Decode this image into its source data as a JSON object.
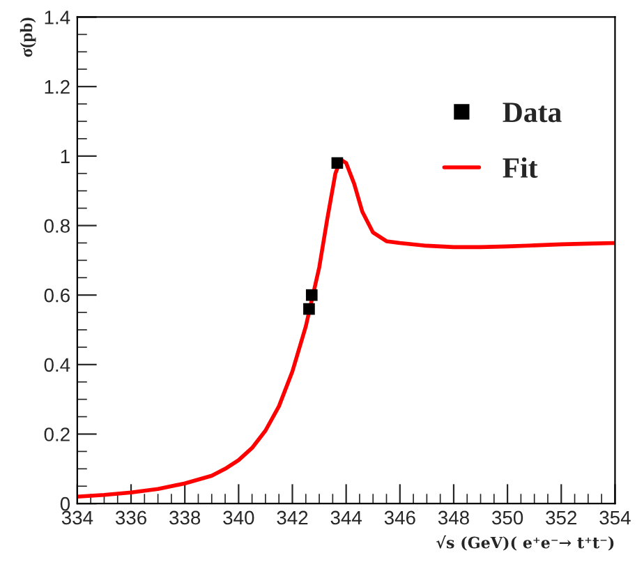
{
  "chart_data": {
    "type": "line",
    "xlabel": "√s (GeV)( e⁺e⁻→ t⁺t⁻)",
    "ylabel": "σ(pb)",
    "xlim": [
      334,
      354
    ],
    "ylim": [
      0,
      1.4
    ],
    "xticks": [
      334,
      336,
      338,
      340,
      342,
      344,
      346,
      348,
      350,
      352,
      354
    ],
    "yticks": [
      0,
      0.2,
      0.4,
      0.6,
      0.8,
      1,
      1.2,
      1.4
    ],
    "grid": false,
    "legend": "top right",
    "series": [
      {
        "name": "Data",
        "type": "scatter",
        "marker": "square",
        "color": "#000000",
        "x": [
          342.62,
          342.72,
          343.67
        ],
        "values": [
          0.56,
          0.6,
          0.98
        ]
      },
      {
        "name": "Fit",
        "marker": "none",
        "line_style": "solid",
        "color": "#ff0000",
        "x": [
          334,
          335,
          336,
          337,
          338,
          339,
          339.5,
          340,
          340.5,
          341,
          341.5,
          342,
          342.5,
          343,
          343.3,
          343.6,
          343.8,
          344,
          344.3,
          344.6,
          345,
          345.5,
          346,
          347,
          348,
          349,
          350,
          351,
          352,
          353,
          354
        ],
        "values": [
          0.02,
          0.025,
          0.032,
          0.042,
          0.058,
          0.08,
          0.1,
          0.125,
          0.16,
          0.21,
          0.28,
          0.38,
          0.51,
          0.68,
          0.82,
          0.95,
          0.99,
          0.98,
          0.92,
          0.84,
          0.78,
          0.755,
          0.75,
          0.742,
          0.738,
          0.738,
          0.74,
          0.743,
          0.746,
          0.748,
          0.75
        ]
      }
    ]
  }
}
